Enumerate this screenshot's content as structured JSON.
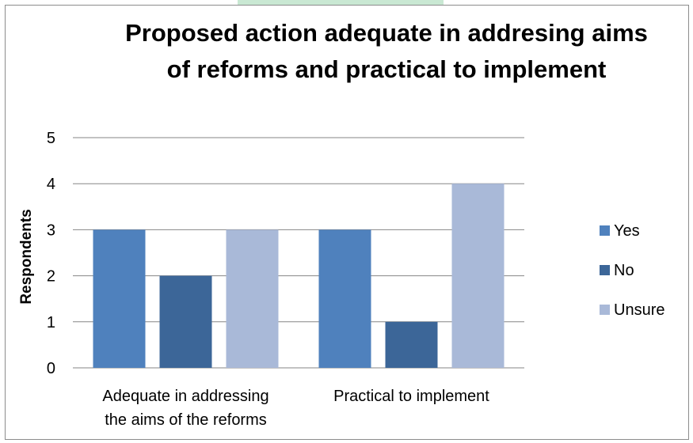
{
  "chart_data": {
    "type": "bar",
    "title_lines": [
      "Proposed action adequate in addresing aims",
      "of reforms and practical to implement"
    ],
    "ylabel": "Respondents",
    "xlabel": "",
    "ylim": [
      0,
      5
    ],
    "yticks": [
      "0",
      "1",
      "2",
      "3",
      "4",
      "5"
    ],
    "grid": true,
    "legend_position": "right",
    "categories": [
      [
        "Adequate in addressing",
        "the aims of the reforms"
      ],
      [
        "Practical to implement"
      ]
    ],
    "series": [
      {
        "name": "Yes",
        "color": "#4f81bd",
        "values": [
          3,
          3
        ]
      },
      {
        "name": "No",
        "color": "#3c6698",
        "values": [
          2,
          1
        ]
      },
      {
        "name": "Unsure",
        "color": "#a9b9d8",
        "values": [
          3,
          4
        ]
      }
    ]
  }
}
